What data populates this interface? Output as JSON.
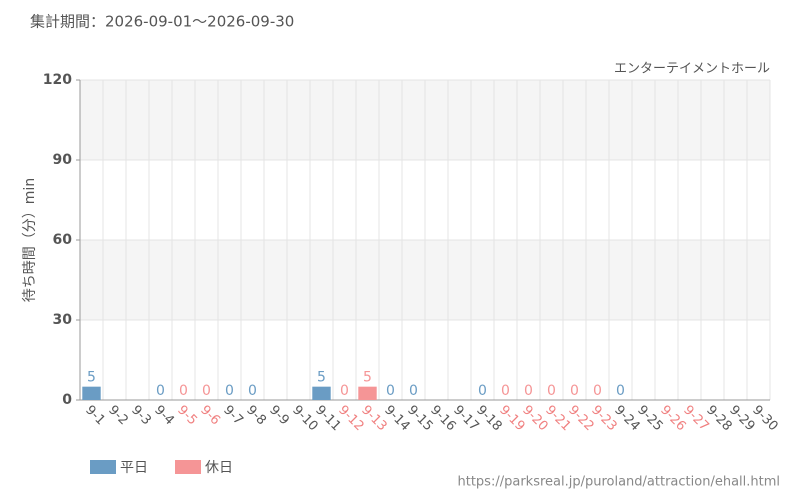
{
  "chart_data": {
    "type": "bar",
    "title": "集計期間：2026-09-01～2026-09-30",
    "subtitle": "エンターテイメントホール",
    "y_label": "待ち時間（分）min",
    "footer": "https://parksreal.jp/puroland/attraction/ehall.html",
    "categories": [
      "9-1",
      "9-2",
      "9-3",
      "9-4",
      "9-5",
      "9-6",
      "9-7",
      "9-8",
      "9-9",
      "9-10",
      "9-11",
      "9-12",
      "9-13",
      "9-14",
      "9-15",
      "9-16",
      "9-17",
      "9-18",
      "9-19",
      "9-20",
      "9-21",
      "9-22",
      "9-23",
      "9-24",
      "9-25",
      "9-26",
      "9-27",
      "9-28",
      "9-29",
      "9-30"
    ],
    "category_label_colors": [
      "#555",
      "#555",
      "#555",
      "#555",
      "#f08080",
      "#f08080",
      "#555",
      "#555",
      "#555",
      "#555",
      "#555",
      "#f08080",
      "#f08080",
      "#555",
      "#555",
      "#555",
      "#555",
      "#555",
      "#f08080",
      "#f08080",
      "#f08080",
      "#f08080",
      "#f08080",
      "#555",
      "#555",
      "#f08080",
      "#f08080",
      "#555",
      "#555",
      "#555"
    ],
    "series": [
      {
        "name": "平日",
        "color": "#6a9cc4",
        "values": [
          5,
          null,
          null,
          0,
          null,
          null,
          0,
          0,
          null,
          null,
          5,
          null,
          null,
          0,
          0,
          null,
          null,
          0,
          null,
          null,
          null,
          null,
          null,
          0,
          null,
          null,
          null,
          null,
          null,
          null
        ]
      },
      {
        "name": "休日",
        "color": "#f59596",
        "values": [
          null,
          null,
          null,
          null,
          0,
          0,
          null,
          null,
          null,
          null,
          null,
          0,
          5,
          null,
          null,
          null,
          null,
          null,
          0,
          0,
          0,
          0,
          0,
          null,
          null,
          null,
          null,
          null,
          null,
          null
        ]
      }
    ],
    "ylim": [
      0,
      120
    ],
    "yticks": [
      0,
      30,
      60,
      90,
      120
    ],
    "grid": true
  }
}
